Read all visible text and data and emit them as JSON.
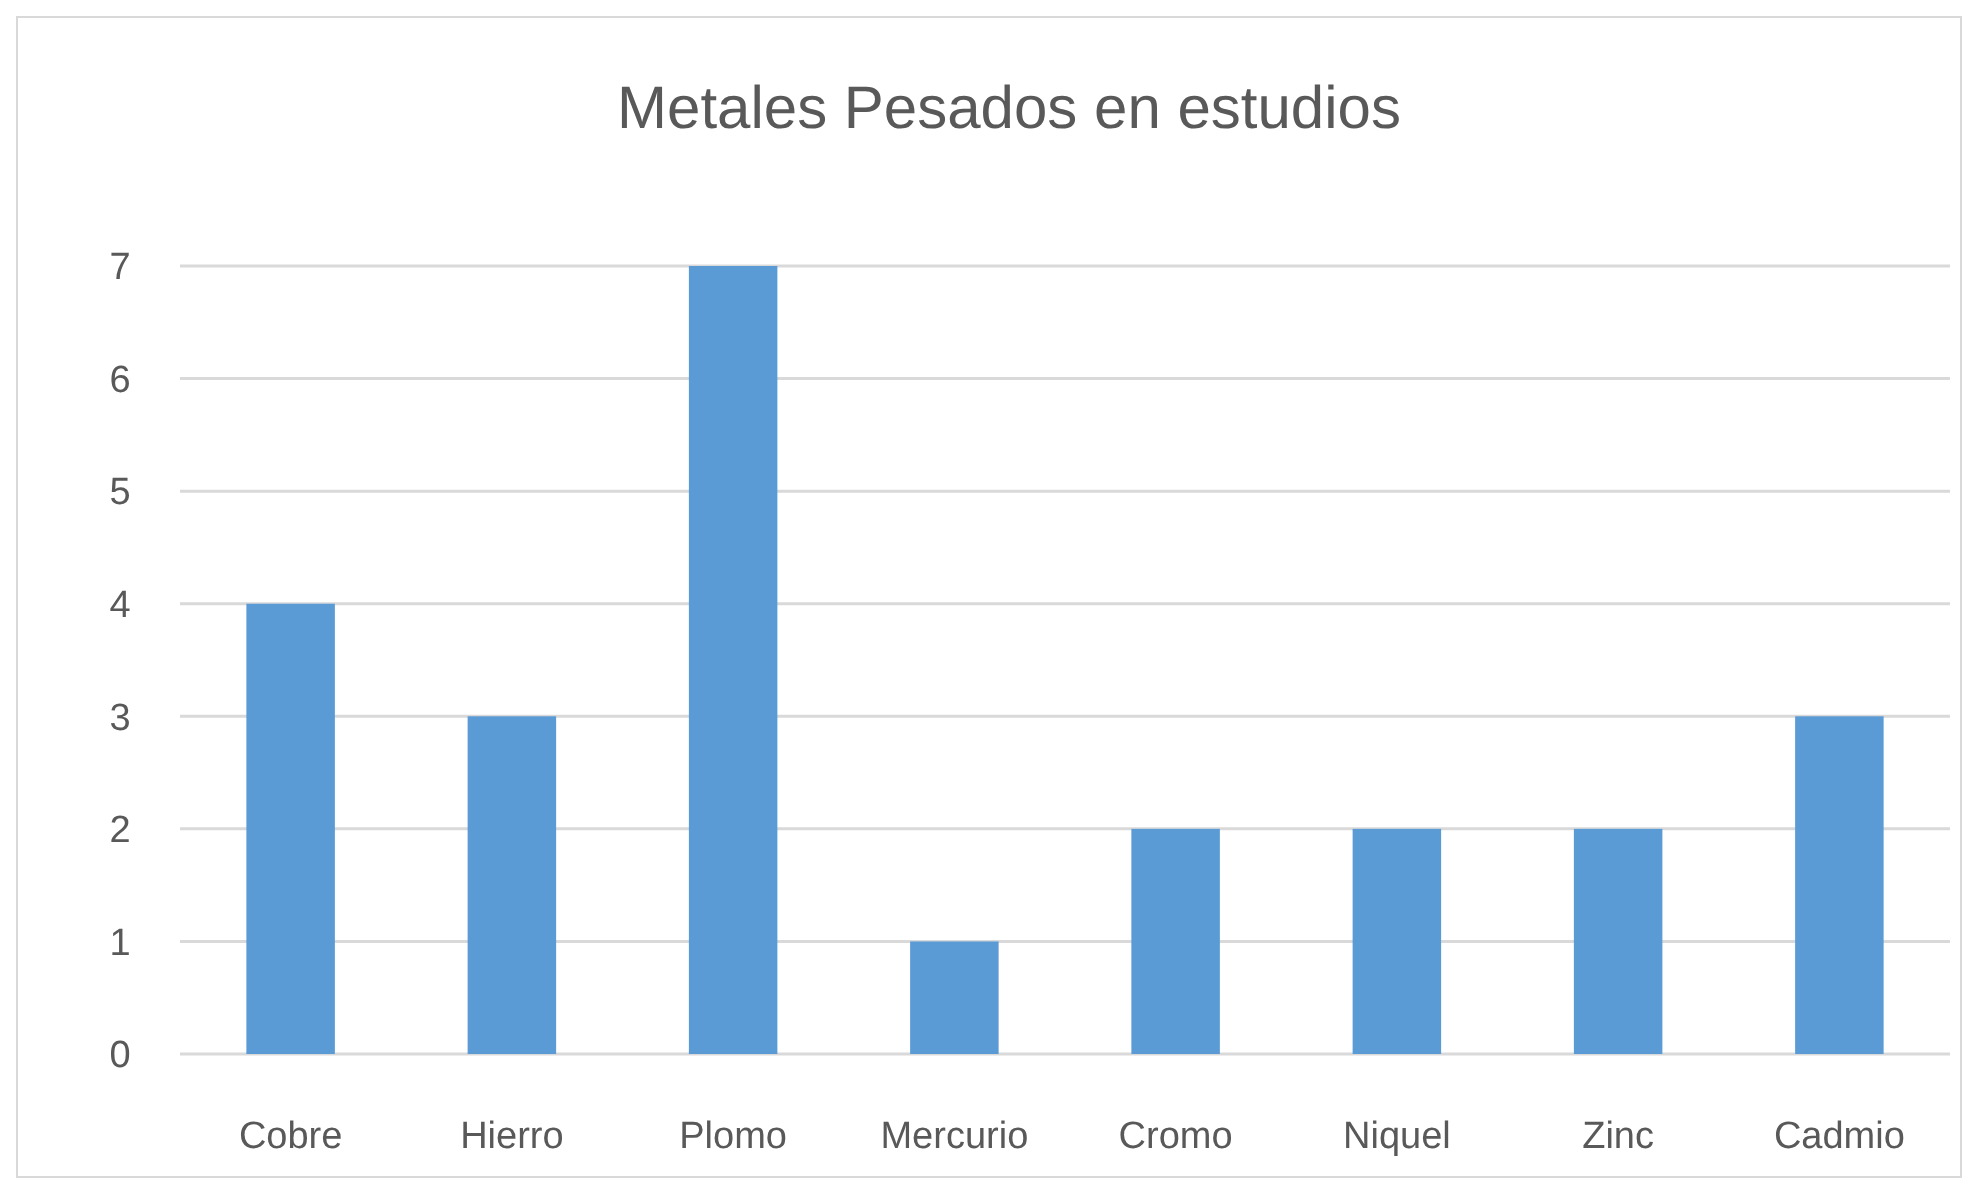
{
  "chart_data": {
    "type": "bar",
    "title": "Metales Pesados en estudios",
    "categories": [
      "Cobre",
      "Hierro",
      "Plomo",
      "Mercurio",
      "Cromo",
      "Niquel",
      "Zinc",
      "Cadmio"
    ],
    "values": [
      4,
      3,
      7,
      1,
      2,
      2,
      2,
      3
    ],
    "color": "#5b9bd5",
    "ylim": [
      0,
      7
    ],
    "yticks": [
      0,
      1,
      2,
      3,
      4,
      5,
      6,
      7
    ],
    "grid": "y"
  }
}
